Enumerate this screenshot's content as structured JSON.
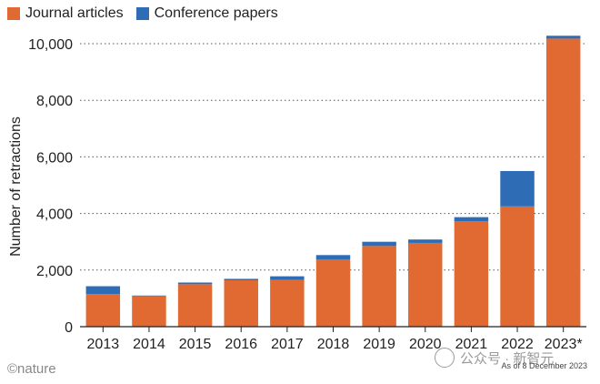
{
  "colors": {
    "journal": "#E06A32",
    "conference": "#2E6DB5",
    "grid": "#555555",
    "axis": "#222222"
  },
  "legend": {
    "journal_label": "Journal articles",
    "conference_label": "Conference papers"
  },
  "footer": {
    "brand": "©nature",
    "note": "As of 8 December 2023",
    "watermark": "公众号 · 新智元"
  },
  "chart_data": {
    "type": "bar",
    "stacked": true,
    "categories": [
      "2013",
      "2014",
      "2015",
      "2016",
      "2017",
      "2018",
      "2019",
      "2020",
      "2021",
      "2022",
      "2023*"
    ],
    "series": [
      {
        "name": "Journal articles",
        "values": [
          1150,
          1080,
          1500,
          1640,
          1650,
          2380,
          2850,
          2960,
          3720,
          4250,
          10180
        ]
      },
      {
        "name": "Conference papers",
        "values": [
          280,
          20,
          60,
          50,
          130,
          150,
          150,
          120,
          150,
          1250,
          100
        ]
      }
    ],
    "ylabel": "Number of retractions",
    "ylim": [
      0,
      10000
    ],
    "yticks": [
      0,
      2000,
      4000,
      6000,
      8000,
      10000
    ],
    "ytick_labels": [
      "0",
      "2,000",
      "4,000",
      "6,000",
      "8,000",
      "10,000"
    ],
    "grid": "horizontal dotted",
    "legend_position": "top-left"
  }
}
